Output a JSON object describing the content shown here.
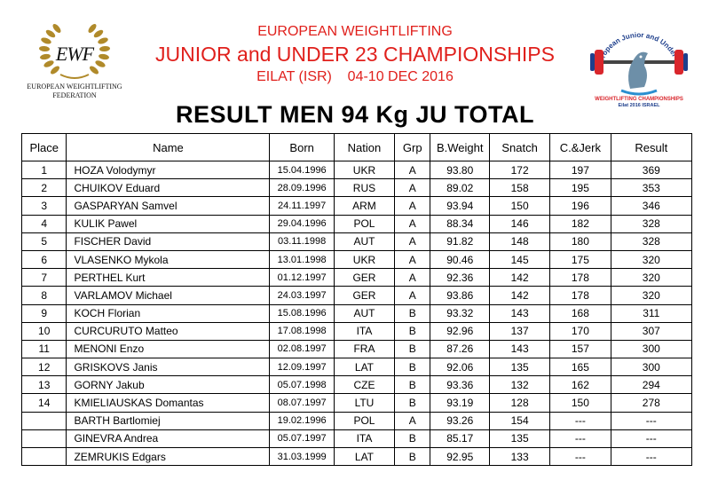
{
  "logo_left": {
    "letters": "EWF",
    "name_line1": "EUROPEAN WEIGHTLIFTING",
    "name_line2": "FEDERATION",
    "icon": "laurel-wreath-icon"
  },
  "header": {
    "line1": "EUROPEAN WEIGHTLIFTING",
    "line2": "JUNIOR and UNDER 23 CHAMPIONSHIPS",
    "line3": "EILAT (ISR)    04-10 DEC 2016"
  },
  "logo_right": {
    "icon": "championship-emblem-icon",
    "text_top": "European Junior and Under 23",
    "text_bottom": "WEIGHTLIFTING CHAMPIONSHIPS",
    "text_place": "Eilat 2016 ISRAEL"
  },
  "title": "RESULT MEN 94 Kg JU TOTAL",
  "colors": {
    "header_red": "#e0201c",
    "ink": "#000000"
  },
  "table": {
    "headers": [
      "Place",
      "Name",
      "Born",
      "Nation",
      "Grp",
      "B.Weight",
      "Snatch",
      "C.&Jerk",
      "Result"
    ],
    "rows": [
      {
        "place": "1",
        "name": "HOZA Volodymyr",
        "born": "15.04.1996",
        "nation": "UKR",
        "grp": "A",
        "bw": "93.80",
        "snatch": "172",
        "cj": "197",
        "result": "369"
      },
      {
        "place": "2",
        "name": "CHUIKOV Eduard",
        "born": "28.09.1996",
        "nation": "RUS",
        "grp": "A",
        "bw": "89.02",
        "snatch": "158",
        "cj": "195",
        "result": "353"
      },
      {
        "place": "3",
        "name": "GASPARYAN Samvel",
        "born": "24.11.1997",
        "nation": "ARM",
        "grp": "A",
        "bw": "93.94",
        "snatch": "150",
        "cj": "196",
        "result": "346"
      },
      {
        "place": "4",
        "name": "KULIK Pawel",
        "born": "29.04.1996",
        "nation": "POL",
        "grp": "A",
        "bw": "88.34",
        "snatch": "146",
        "cj": "182",
        "result": "328"
      },
      {
        "place": "5",
        "name": "FISCHER David",
        "born": "03.11.1998",
        "nation": "AUT",
        "grp": "A",
        "bw": "91.82",
        "snatch": "148",
        "cj": "180",
        "result": "328"
      },
      {
        "place": "6",
        "name": "VLASENKO Mykola",
        "born": "13.01.1998",
        "nation": "UKR",
        "grp": "A",
        "bw": "90.46",
        "snatch": "145",
        "cj": "175",
        "result": "320"
      },
      {
        "place": "7",
        "name": "PERTHEL Kurt",
        "born": "01.12.1997",
        "nation": "GER",
        "grp": "A",
        "bw": "92.36",
        "snatch": "142",
        "cj": "178",
        "result": "320"
      },
      {
        "place": "8",
        "name": "VARLAMOV Michael",
        "born": "24.03.1997",
        "nation": "GER",
        "grp": "A",
        "bw": "93.86",
        "snatch": "142",
        "cj": "178",
        "result": "320"
      },
      {
        "place": "9",
        "name": "KOCH Florian",
        "born": "15.08.1996",
        "nation": "AUT",
        "grp": "B",
        "bw": "93.32",
        "snatch": "143",
        "cj": "168",
        "result": "311"
      },
      {
        "place": "10",
        "name": "CURCURUTO Matteo",
        "born": "17.08.1998",
        "nation": "ITA",
        "grp": "B",
        "bw": "92.96",
        "snatch": "137",
        "cj": "170",
        "result": "307"
      },
      {
        "place": "11",
        "name": "MENONI Enzo",
        "born": "02.08.1997",
        "nation": "FRA",
        "grp": "B",
        "bw": "87.26",
        "snatch": "143",
        "cj": "157",
        "result": "300"
      },
      {
        "place": "12",
        "name": "GRISKOVS Janis",
        "born": "12.09.1997",
        "nation": "LAT",
        "grp": "B",
        "bw": "92.06",
        "snatch": "135",
        "cj": "165",
        "result": "300"
      },
      {
        "place": "13",
        "name": "GORNY Jakub",
        "born": "05.07.1998",
        "nation": "CZE",
        "grp": "B",
        "bw": "93.36",
        "snatch": "132",
        "cj": "162",
        "result": "294"
      },
      {
        "place": "14",
        "name": "KMIELIAUSKAS Domantas",
        "born": "08.07.1997",
        "nation": "LTU",
        "grp": "B",
        "bw": "93.19",
        "snatch": "128",
        "cj": "150",
        "result": "278"
      },
      {
        "place": "",
        "name": "BARTH Bartlomiej",
        "born": "19.02.1996",
        "nation": "POL",
        "grp": "A",
        "bw": "93.26",
        "snatch": "154",
        "cj": "---",
        "result": "---"
      },
      {
        "place": "",
        "name": "GINEVRA Andrea",
        "born": "05.07.1997",
        "nation": "ITA",
        "grp": "B",
        "bw": "85.17",
        "snatch": "135",
        "cj": "---",
        "result": "---"
      },
      {
        "place": "",
        "name": "ZEMRUKIS Edgars",
        "born": "31.03.1999",
        "nation": "LAT",
        "grp": "B",
        "bw": "92.95",
        "snatch": "133",
        "cj": "---",
        "result": "---"
      }
    ]
  }
}
